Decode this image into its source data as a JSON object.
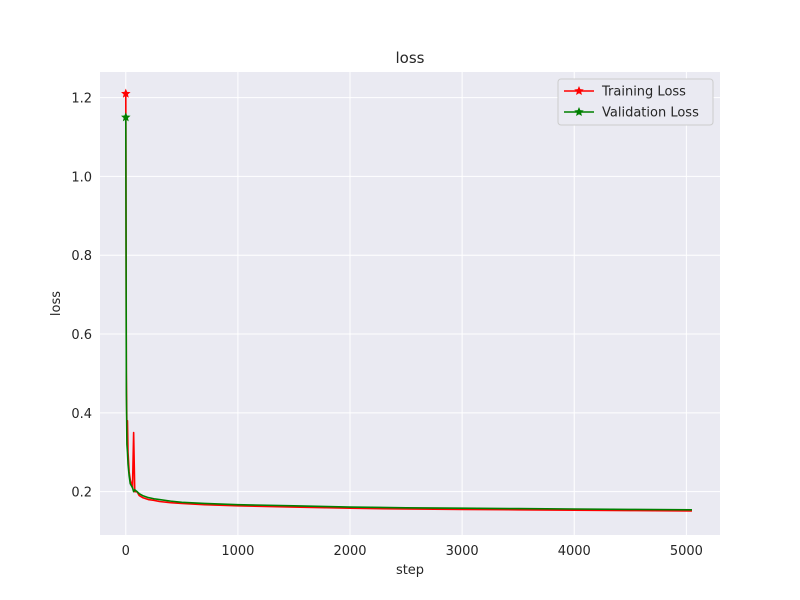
{
  "chart_data": {
    "type": "line",
    "title": "loss",
    "xlabel": "step",
    "ylabel": "loss",
    "xlim": [
      -230,
      5300
    ],
    "ylim": [
      0.09,
      1.265
    ],
    "xticks": [
      0,
      1000,
      2000,
      3000,
      4000,
      5000
    ],
    "yticks": [
      0.2,
      0.4,
      0.6,
      0.8,
      1.0,
      1.2
    ],
    "xtick_labels": [
      "0",
      "1000",
      "2000",
      "3000",
      "4000",
      "5000"
    ],
    "ytick_labels": [
      "0.2",
      "0.4",
      "0.6",
      "0.8",
      "1.0",
      "1.2"
    ],
    "grid": true,
    "legend_position": "top-right",
    "series": [
      {
        "name": "Training Loss",
        "color": "#ff0000",
        "marker": "star",
        "x": [
          0,
          5,
          10,
          15,
          20,
          30,
          40,
          50,
          60,
          70,
          80,
          100,
          120,
          150,
          200,
          250,
          300,
          400,
          500,
          700,
          1000,
          1500,
          2000,
          2500,
          3000,
          3500,
          4000,
          4500,
          5050
        ],
        "y": [
          1.21,
          0.5,
          0.36,
          0.38,
          0.3,
          0.25,
          0.23,
          0.22,
          0.21,
          0.35,
          0.2,
          0.2,
          0.19,
          0.185,
          0.18,
          0.178,
          0.175,
          0.172,
          0.17,
          0.167,
          0.164,
          0.161,
          0.158,
          0.156,
          0.155,
          0.154,
          0.153,
          0.152,
          0.151
        ]
      },
      {
        "name": "Validation Loss",
        "color": "#008000",
        "marker": "star",
        "x": [
          0,
          5,
          10,
          15,
          20,
          30,
          40,
          50,
          60,
          70,
          80,
          100,
          120,
          150,
          200,
          250,
          300,
          400,
          500,
          700,
          1000,
          1500,
          2000,
          2500,
          3000,
          3500,
          4000,
          4500,
          5050
        ],
        "y": [
          1.15,
          0.45,
          0.32,
          0.3,
          0.27,
          0.24,
          0.22,
          0.215,
          0.21,
          0.2,
          0.205,
          0.2,
          0.195,
          0.19,
          0.185,
          0.182,
          0.18,
          0.176,
          0.173,
          0.17,
          0.167,
          0.164,
          0.161,
          0.159,
          0.158,
          0.157,
          0.156,
          0.155,
          0.154
        ]
      }
    ]
  }
}
